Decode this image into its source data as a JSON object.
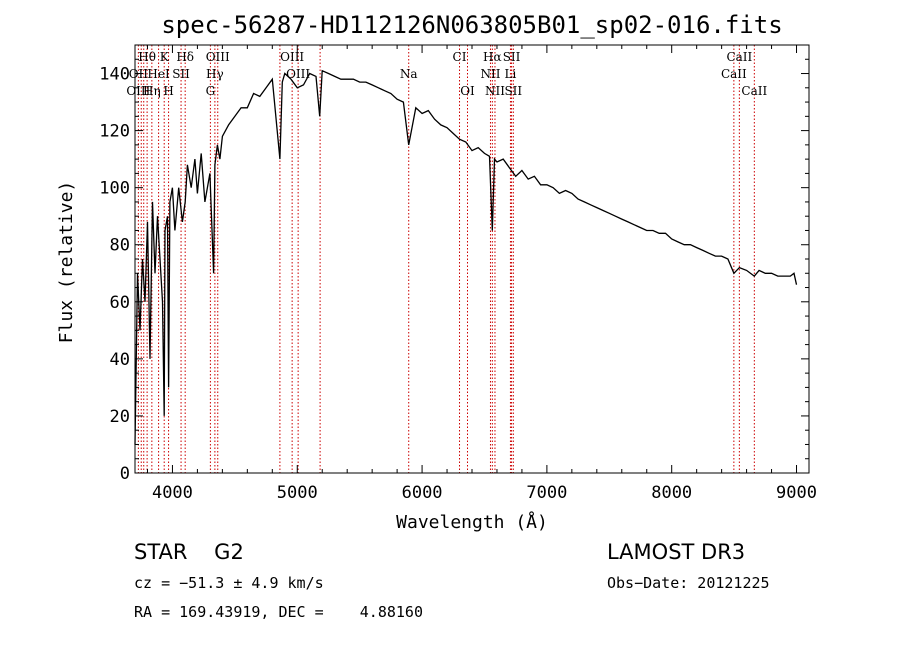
{
  "chart_data": {
    "type": "line",
    "title": "spec-56287-HD112126N063805B01_sp02-016.fits",
    "xlabel": "Wavelength (Å)",
    "ylabel": "Flux (relative)",
    "xlim": [
      3700,
      9100
    ],
    "ylim": [
      0,
      150
    ],
    "xticks": [
      4000,
      5000,
      6000,
      7000,
      8000,
      9000
    ],
    "yticks": [
      0,
      20,
      40,
      60,
      80,
      100,
      120,
      140
    ],
    "series": [
      {
        "name": "flux",
        "x": [
          3700,
          3720,
          3740,
          3760,
          3780,
          3800,
          3820,
          3840,
          3860,
          3880,
          3900,
          3920,
          3934,
          3940,
          3960,
          3969,
          3980,
          4000,
          4020,
          4050,
          4080,
          4102,
          4120,
          4150,
          4180,
          4200,
          4230,
          4260,
          4300,
          4330,
          4340,
          4360,
          4380,
          4400,
          4450,
          4500,
          4550,
          4600,
          4650,
          4700,
          4750,
          4800,
          4861,
          4880,
          4900,
          4950,
          5000,
          5050,
          5100,
          5150,
          5180,
          5200,
          5250,
          5300,
          5350,
          5400,
          5450,
          5500,
          5550,
          5600,
          5650,
          5700,
          5750,
          5800,
          5850,
          5893,
          5950,
          6000,
          6050,
          6100,
          6150,
          6200,
          6250,
          6300,
          6350,
          6400,
          6450,
          6500,
          6540,
          6563,
          6580,
          6600,
          6650,
          6700,
          6750,
          6800,
          6850,
          6900,
          6950,
          7000,
          7050,
          7100,
          7150,
          7200,
          7250,
          7300,
          7350,
          7400,
          7450,
          7500,
          7550,
          7600,
          7650,
          7700,
          7750,
          7800,
          7850,
          7900,
          7950,
          8000,
          8050,
          8100,
          8150,
          8200,
          8250,
          8300,
          8350,
          8400,
          8450,
          8498,
          8542,
          8600,
          8662,
          8700,
          8750,
          8800,
          8850,
          8900,
          8950,
          8980,
          9000
        ],
        "y": [
          10,
          70,
          50,
          75,
          60,
          88,
          40,
          95,
          70,
          90,
          75,
          60,
          20,
          85,
          90,
          30,
          95,
          100,
          85,
          100,
          88,
          95,
          108,
          100,
          110,
          98,
          112,
          95,
          105,
          70,
          108,
          115,
          110,
          118,
          122,
          125,
          128,
          128,
          133,
          132,
          135,
          138,
          110,
          137,
          140,
          138,
          135,
          136,
          140,
          139,
          125,
          141,
          140,
          139,
          138,
          138,
          138,
          137,
          137,
          136,
          135,
          134,
          133,
          131,
          130,
          115,
          128,
          126,
          127,
          124,
          122,
          121,
          119,
          117,
          116,
          113,
          114,
          112,
          111,
          85,
          110,
          109,
          110,
          107,
          104,
          106,
          103,
          104,
          101,
          101,
          100,
          98,
          99,
          98,
          96,
          95,
          94,
          93,
          92,
          91,
          90,
          89,
          88,
          87,
          86,
          85,
          85,
          84,
          84,
          82,
          81,
          80,
          80,
          79,
          78,
          77,
          76,
          76,
          75,
          70,
          72,
          71,
          69,
          71,
          70,
          70,
          69,
          69,
          69,
          70,
          66
        ]
      }
    ],
    "line_labels": [
      {
        "label": "Hθ",
        "wl": 3797,
        "row": 0
      },
      {
        "label": "K",
        "wl": 3934,
        "row": 0
      },
      {
        "label": "Hδ",
        "wl": 4102,
        "row": 0
      },
      {
        "label": "OIII",
        "wl": 4363,
        "row": 0
      },
      {
        "label": "OIII",
        "wl": 4959,
        "row": 0
      },
      {
        "label": "CI",
        "wl": 6300,
        "row": 0
      },
      {
        "label": "Hα",
        "wl": 6563,
        "row": 0
      },
      {
        "label": "SII",
        "wl": 6717,
        "row": 0
      },
      {
        "label": "CaII",
        "wl": 8542,
        "row": 0
      },
      {
        "label": "OII",
        "wl": 3727,
        "row": 1
      },
      {
        "label": "HeI",
        "wl": 3889,
        "row": 1
      },
      {
        "label": "SII",
        "wl": 4069,
        "row": 1
      },
      {
        "label": "Hγ",
        "wl": 4340,
        "row": 1
      },
      {
        "label": "OIII",
        "wl": 5007,
        "row": 1
      },
      {
        "label": "Na",
        "wl": 5893,
        "row": 1
      },
      {
        "label": "NII",
        "wl": 6548,
        "row": 1
      },
      {
        "label": "Li",
        "wl": 6708,
        "row": 1
      },
      {
        "label": "CaII",
        "wl": 8498,
        "row": 1
      },
      {
        "label": "OIII",
        "wl": 3727,
        "row": 2
      },
      {
        "label": "Hη",
        "wl": 3835,
        "row": 2
      },
      {
        "label": "H",
        "wl": 3969,
        "row": 2
      },
      {
        "label": "G",
        "wl": 4304,
        "row": 2
      },
      {
        "label": "OI",
        "wl": 6364,
        "row": 2
      },
      {
        "label": "NII",
        "wl": 6584,
        "row": 2
      },
      {
        "label": "SII",
        "wl": 6731,
        "row": 2
      },
      {
        "label": "CaII",
        "wl": 8662,
        "row": 2
      }
    ],
    "marker_lines": [
      3727,
      3750,
      3770,
      3797,
      3835,
      3889,
      3934,
      3969,
      4069,
      4102,
      4304,
      4340,
      4363,
      4861,
      4959,
      5007,
      5183,
      5893,
      6300,
      6364,
      6548,
      6563,
      6584,
      6708,
      6717,
      6731,
      8498,
      8542,
      8662
    ],
    "marker_color": "#cc0000"
  },
  "info": {
    "object": "STAR    G2",
    "cz": "cz = −51.3 ± 4.9 km/s",
    "coords": "RA = 169.43919, DEC =    4.88160",
    "survey": "LAMOST DR3",
    "obs_date": "Obs−Date: 20121225"
  }
}
